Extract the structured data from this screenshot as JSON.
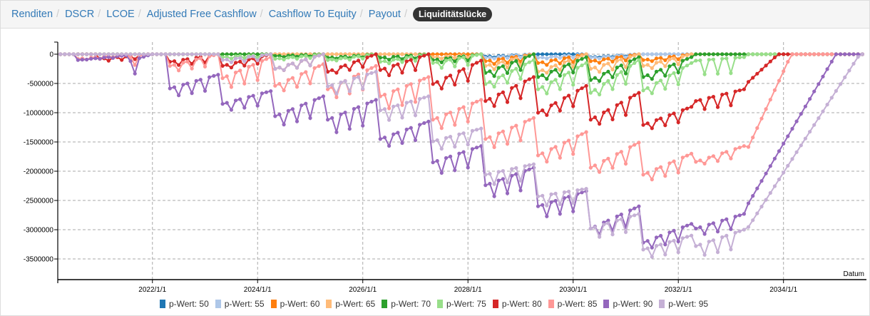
{
  "nav": {
    "items": [
      "Renditen",
      "DSCR",
      "LCOE",
      "Adjusted Free Cashflow",
      "Cashflow To Equity",
      "Payout"
    ],
    "separator": "/",
    "active": "Liquiditätslücke"
  },
  "chart_data": {
    "type": "line",
    "title": "Liquiditätslücke",
    "xlabel": "Datum",
    "ylabel": "",
    "x_ticks": [
      "2022/1/1",
      "2024/1/1",
      "2026/1/1",
      "2028/1/1",
      "2030/1/1",
      "2032/1/1",
      "2034/1/1"
    ],
    "x_tick_values": [
      2022,
      2024,
      2026,
      2028,
      2030,
      2032,
      2034
    ],
    "xlim": [
      2020.2,
      2035.55
    ],
    "ylim": [
      -3853000,
      207000
    ],
    "y_ticks": [
      "0",
      "-500000",
      "-1000000",
      "-1500000",
      "-2000000",
      "-2500000",
      "-3000000",
      "-3500000"
    ],
    "y_tick_values": [
      0,
      -500000,
      -1000000,
      -1500000,
      -2000000,
      -2500000,
      -3000000,
      -3500000
    ],
    "grid": true,
    "legend_position": "bottom",
    "sampling": "monthly, 2020.25 to 2035.55; value 0 outside segments",
    "segment_fields": [
      "start_year",
      "level",
      "sawtooth_low",
      "year_end_high"
    ],
    "series": [
      {
        "name": "p-Wert: 50",
        "color": "#1f77b4",
        "segments": [
          [
            2028.3,
            -40000,
            -60000,
            0
          ],
          [
            2030.3,
            -50000,
            -60000,
            0
          ]
        ]
      },
      {
        "name": "p-Wert: 55",
        "color": "#aec7e8",
        "segments": [
          [
            2028.3,
            -60000,
            -80000,
            0
          ],
          [
            2029.3,
            -60000,
            -80000,
            0
          ],
          [
            2030.3,
            -60000,
            -80000,
            0
          ]
        ]
      },
      {
        "name": "p-Wert: 60",
        "color": "#ff7f0e",
        "segments": [
          [
            2028.3,
            -120000,
            -180000,
            0
          ],
          [
            2029.3,
            -150000,
            -200000,
            0
          ],
          [
            2030.3,
            -120000,
            -160000,
            0
          ],
          [
            2031.3,
            -100000,
            -130000,
            0
          ]
        ]
      },
      {
        "name": "p-Wert: 65",
        "color": "#ffbb78",
        "segments": [
          [
            2027.3,
            -50000,
            -80000,
            0
          ],
          [
            2028.3,
            -200000,
            -280000,
            0
          ],
          [
            2029.3,
            -300000,
            -350000,
            0
          ],
          [
            2030.3,
            -250000,
            -330000,
            0
          ],
          [
            2031.3,
            -200000,
            -260000,
            0
          ]
        ]
      },
      {
        "name": "p-Wert: 70",
        "color": "#2ca02c",
        "segments": [
          [
            2024.3,
            -30000,
            -50000,
            0
          ],
          [
            2025.3,
            -60000,
            -80000,
            0
          ],
          [
            2026.3,
            -60000,
            -100000,
            0
          ],
          [
            2027.3,
            -100000,
            -150000,
            0
          ],
          [
            2028.3,
            -320000,
            -410000,
            0
          ],
          [
            2029.3,
            -390000,
            -460000,
            -50000
          ],
          [
            2030.3,
            -440000,
            -500000,
            -50000
          ],
          [
            2031.3,
            -390000,
            -460000,
            -50000
          ]
        ]
      },
      {
        "name": "p-Wert: 75",
        "color": "#98df8a",
        "segments": [
          [
            2023.3,
            -50000,
            -80000,
            0
          ],
          [
            2024.3,
            -80000,
            -100000,
            0
          ],
          [
            2025.3,
            -100000,
            -120000,
            0
          ],
          [
            2026.3,
            -130000,
            -170000,
            0
          ],
          [
            2027.3,
            -150000,
            -250000,
            0
          ],
          [
            2028.3,
            -510000,
            -600000,
            -100000
          ],
          [
            2029.3,
            -600000,
            -720000,
            -150000
          ],
          [
            2030.3,
            -660000,
            -750000,
            -100000
          ],
          [
            2031.3,
            -620000,
            -720000,
            -150000
          ],
          [
            2032.3,
            -110000,
            -350000,
            -50000
          ]
        ]
      },
      {
        "name": "p-Wert: 80",
        "color": "#d62728",
        "segments": [
          [
            2021.0,
            -80000,
            -120000,
            0
          ],
          [
            2022.3,
            -130000,
            -200000,
            0
          ],
          [
            2023.3,
            -200000,
            -250000,
            0
          ],
          [
            2024.3,
            -250000,
            -300000,
            0
          ],
          [
            2025.3,
            -300000,
            -350000,
            0
          ],
          [
            2026.3,
            -270000,
            -390000,
            0
          ],
          [
            2027.3,
            -510000,
            -630000,
            -110000
          ],
          [
            2028.3,
            -800000,
            -930000,
            -390000
          ],
          [
            2029.3,
            -1000000,
            -1090000,
            -540000
          ],
          [
            2030.3,
            -1120000,
            -1240000,
            -660000
          ],
          [
            2031.3,
            -1210000,
            -1300000,
            -900000
          ],
          [
            2032.3,
            -800000,
            -960000,
            -600000
          ]
        ],
        "ramp": [
          2033.3,
          -500000,
          2033.9
        ]
      },
      {
        "name": "p-Wert: 85",
        "color": "#ff9896",
        "segments": [
          [
            2020.55,
            -80000,
            -100000,
            0
          ],
          [
            2021.0,
            -150000,
            -250000,
            0
          ],
          [
            2022.3,
            -200000,
            -300000,
            0
          ],
          [
            2023.3,
            -410000,
            -600000,
            -50000
          ],
          [
            2024.3,
            -540000,
            -660000,
            -170000
          ],
          [
            2025.3,
            -600000,
            -780000,
            -200000
          ],
          [
            2026.3,
            -720000,
            -960000,
            -390000
          ],
          [
            2027.3,
            -1120000,
            -1300000,
            -780000
          ],
          [
            2028.3,
            -1450000,
            -1630000,
            -1090000
          ],
          [
            2029.3,
            -1730000,
            -1880000,
            -1330000
          ],
          [
            2030.3,
            -1940000,
            -2060000,
            -1510000
          ],
          [
            2031.3,
            -2060000,
            -2180000,
            -1700000
          ],
          [
            2032.3,
            -1840000,
            -1900000,
            -1570000
          ]
        ],
        "ramp": [
          2033.3,
          -1650000,
          2034.15
        ]
      },
      {
        "name": "p-Wert: 90",
        "color": "#9467bd",
        "segments": [
          [
            2020.55,
            -100000,
            -100000,
            -20000
          ],
          [
            2021.0,
            -290000,
            -450000,
            -20000
          ],
          [
            2022.3,
            -585000,
            -730000,
            -350000
          ],
          [
            2023.3,
            -850000,
            -975000,
            -630000
          ],
          [
            2024.3,
            -1060000,
            -1240000,
            -720000
          ],
          [
            2025.3,
            -1120000,
            -1370000,
            -780000
          ],
          [
            2026.3,
            -1450000,
            -1600000,
            -1150000
          ],
          [
            2027.3,
            -1850000,
            -2060000,
            -1570000
          ],
          [
            2028.3,
            -2240000,
            -2460000,
            -1940000
          ],
          [
            2029.3,
            -2600000,
            -2800000,
            -2340000
          ],
          [
            2030.3,
            -2980000,
            -3120000,
            -2600000
          ],
          [
            2031.3,
            -3220000,
            -3340000,
            -2900000
          ],
          [
            2032.3,
            -2980000,
            -3100000,
            -2730000
          ]
        ],
        "ramp": [
          2033.3,
          -2600000,
          2035.0
        ]
      },
      {
        "name": "p-Wert: 95",
        "color": "#c5b0d5",
        "segments": [
          [
            2023.3,
            -100000,
            -150000,
            0
          ],
          [
            2024.3,
            -250000,
            -300000,
            0
          ],
          [
            2025.3,
            -550000,
            -700000,
            -300000
          ],
          [
            2026.3,
            -960000,
            -1150000,
            -720000
          ],
          [
            2027.3,
            -1490000,
            -1640000,
            -1270000
          ],
          [
            2028.3,
            -2060000,
            -2240000,
            -1880000
          ],
          [
            2029.3,
            -2430000,
            -2600000,
            -2300000
          ],
          [
            2030.3,
            -2980000,
            -3150000,
            -2730000
          ],
          [
            2031.3,
            -3340000,
            -3490000,
            -3100000
          ],
          [
            2032.3,
            -3280000,
            -3460000,
            -3000000
          ]
        ],
        "ramp": [
          2033.3,
          -3000000,
          2035.45
        ]
      }
    ]
  }
}
